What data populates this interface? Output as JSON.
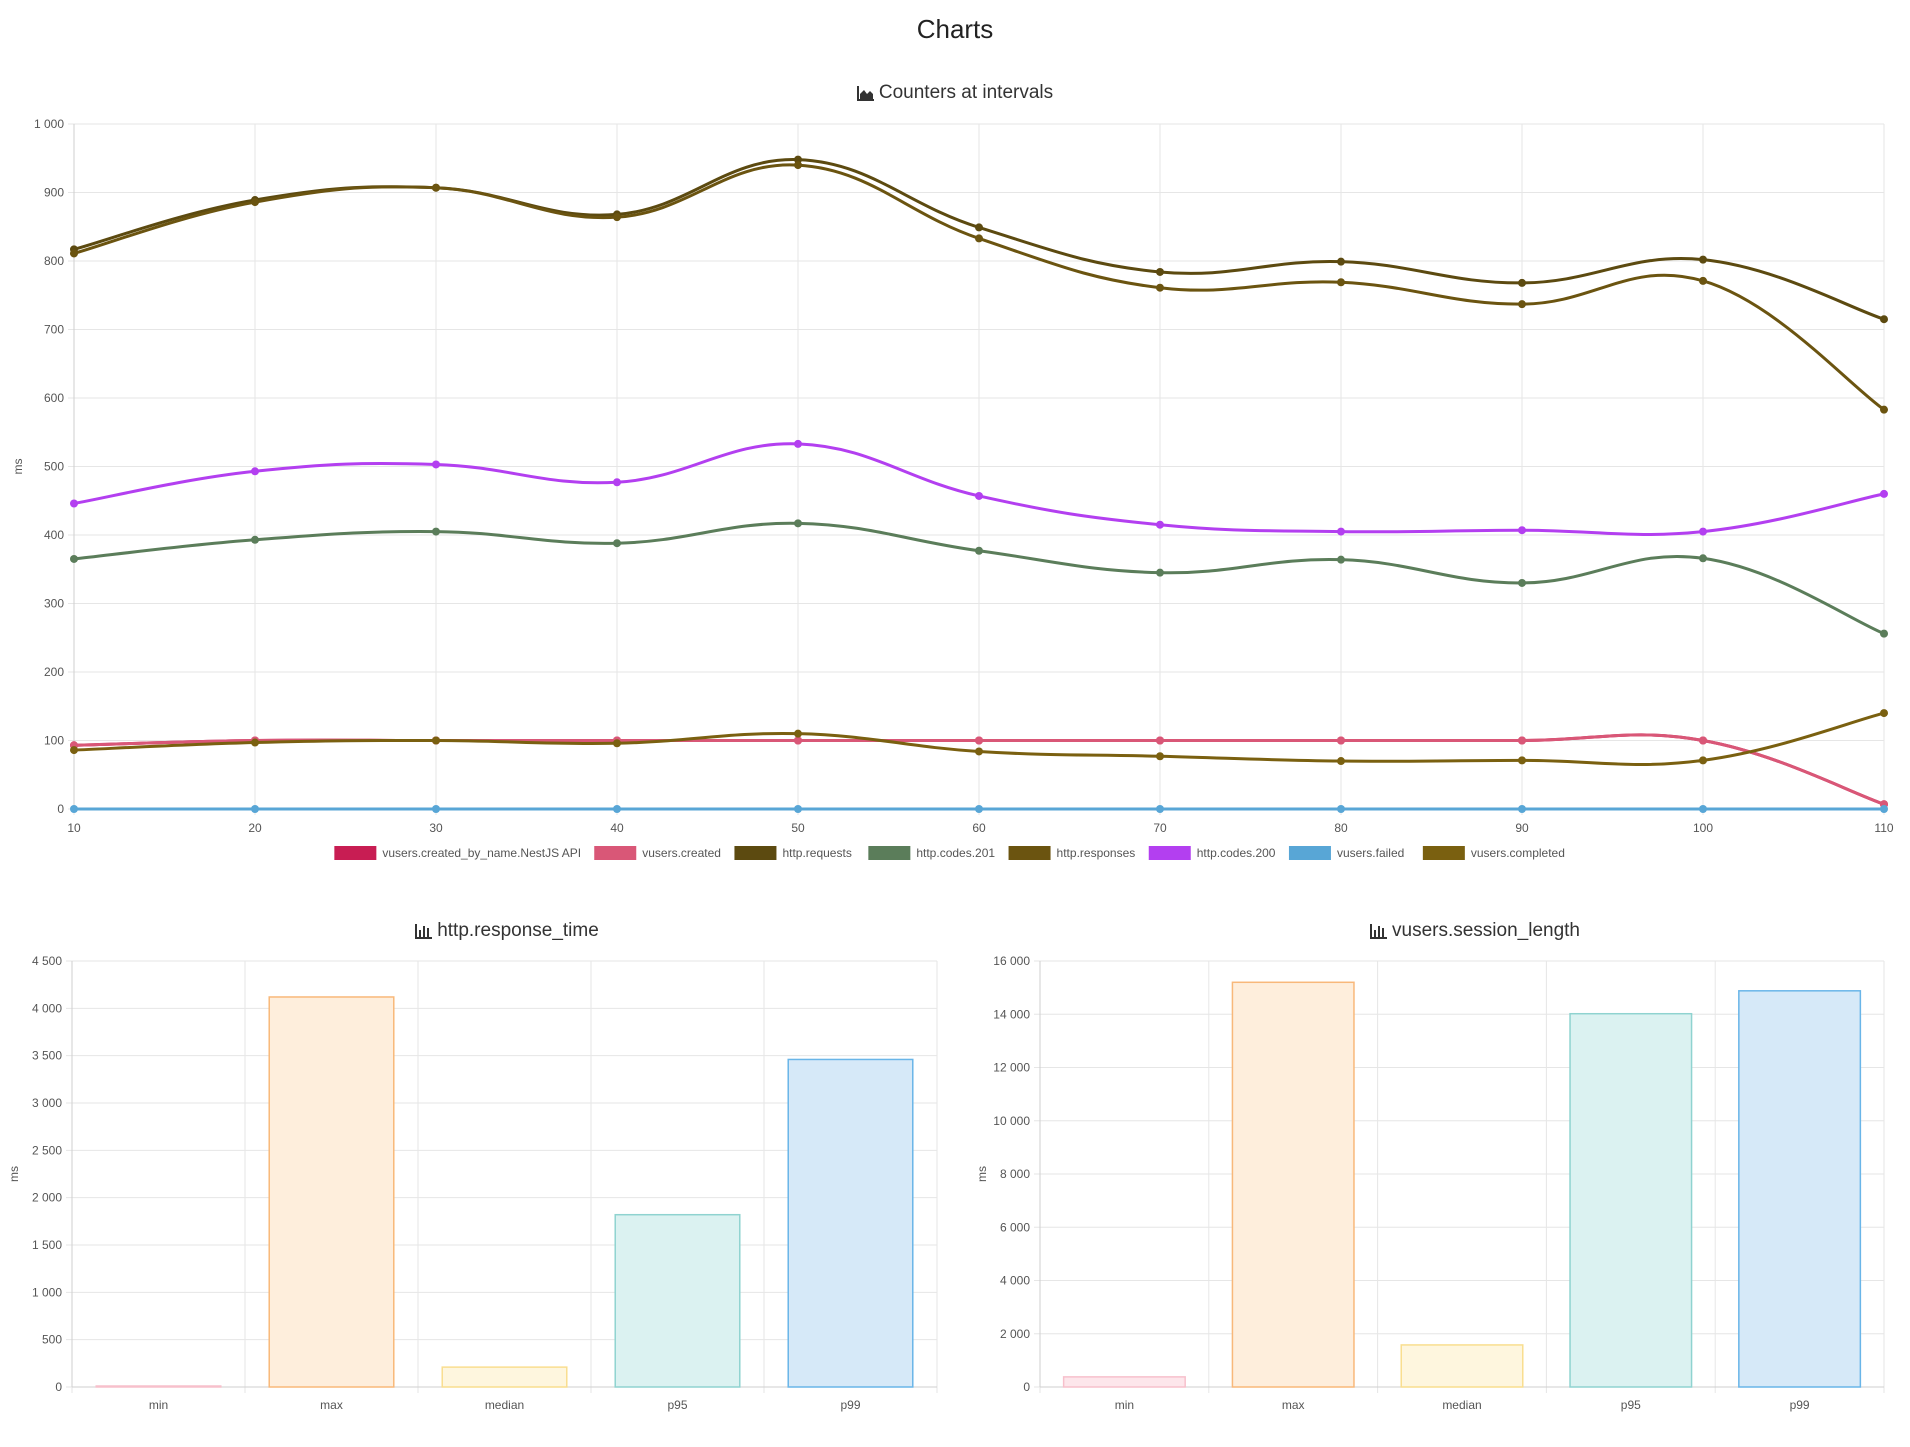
{
  "page": {
    "title": "Charts"
  },
  "chart_data": [
    {
      "id": "counters",
      "type": "line",
      "title": "Counters at intervals",
      "title_icon": "area-chart-icon",
      "xlabel": "",
      "ylabel": "ms",
      "x": [
        10,
        20,
        30,
        40,
        50,
        60,
        70,
        80,
        90,
        100,
        110
      ],
      "xlim": [
        10,
        110
      ],
      "ylim": [
        0,
        1000
      ],
      "yticks": [
        0,
        100,
        200,
        300,
        400,
        500,
        600,
        700,
        800,
        900,
        1000
      ],
      "ytick_labels": [
        "0",
        "100",
        "200",
        "300",
        "400",
        "500",
        "600",
        "700",
        "800",
        "900",
        "1 000"
      ],
      "grid": true,
      "legend_position": "bottom",
      "series": [
        {
          "name": "vusers.created_by_name.NestJS API",
          "color": "#c81d53",
          "values": [
            93,
            100,
            100,
            100,
            100,
            100,
            100,
            100,
            100,
            100,
            7
          ]
        },
        {
          "name": "vusers.created",
          "color": "#d95777",
          "values": [
            93,
            100,
            100,
            100,
            100,
            100,
            100,
            100,
            100,
            100,
            7
          ]
        },
        {
          "name": "http.requests",
          "color": "#5c4a10",
          "values": [
            817,
            889,
            907,
            868,
            948,
            849,
            784,
            799,
            768,
            802,
            715
          ]
        },
        {
          "name": "http.codes.201",
          "color": "#5b7d5a",
          "values": [
            365,
            393,
            405,
            388,
            417,
            377,
            345,
            364,
            330,
            366,
            256
          ]
        },
        {
          "name": "http.responses",
          "color": "#6b5410",
          "values": [
            811,
            886,
            907,
            864,
            940,
            833,
            761,
            769,
            737,
            771,
            583
          ]
        },
        {
          "name": "http.codes.200",
          "color": "#b33ff0",
          "values": [
            446,
            493,
            503,
            477,
            533,
            457,
            415,
            405,
            407,
            405,
            460
          ]
        },
        {
          "name": "vusers.failed",
          "color": "#58a6d6",
          "values": [
            0,
            0,
            0,
            0,
            0,
            0,
            0,
            0,
            0,
            0,
            0
          ]
        },
        {
          "name": "vusers.completed",
          "color": "#7a6010",
          "values": [
            86,
            97,
            100,
            96,
            110,
            84,
            77,
            70,
            71,
            71,
            140
          ]
        }
      ]
    },
    {
      "id": "response_time",
      "type": "bar",
      "title": "http.response_time",
      "title_icon": "bar-chart-icon",
      "ylabel": "ms",
      "categories": [
        "min",
        "max",
        "median",
        "p95",
        "p99"
      ],
      "values": [
        5,
        4120,
        210,
        1820,
        3460
      ],
      "ylim": [
        0,
        4500
      ],
      "yticks": [
        0,
        500,
        1000,
        1500,
        2000,
        2500,
        3000,
        3500,
        4000,
        4500
      ],
      "ytick_labels": [
        "0",
        "500",
        "1 000",
        "1 500",
        "2 000",
        "2 500",
        "3 000",
        "3 500",
        "4 000",
        "4 500"
      ],
      "colors": [
        "#f7c0cc",
        "#f8b87a",
        "#f9de8f",
        "#8fd3d0",
        "#69b5e8"
      ],
      "fills": [
        "#fde6eb",
        "#feeedc",
        "#fef6de",
        "#dbf2f1",
        "#d6e9f8"
      ]
    },
    {
      "id": "session_length",
      "type": "bar",
      "title": "vusers.session_length",
      "title_icon": "bar-chart-icon",
      "ylabel": "ms",
      "categories": [
        "min",
        "max",
        "median",
        "p95",
        "p99"
      ],
      "values": [
        380,
        15200,
        1580,
        14020,
        14880
      ],
      "ylim": [
        0,
        16000
      ],
      "yticks": [
        0,
        2000,
        4000,
        6000,
        8000,
        10000,
        12000,
        14000,
        16000
      ],
      "ytick_labels": [
        "0",
        "2 000",
        "4 000",
        "6 000",
        "8 000",
        "10 000",
        "12 000",
        "14 000",
        "16 000"
      ],
      "colors": [
        "#f7c0cc",
        "#f8b87a",
        "#f9de8f",
        "#8fd3d0",
        "#69b5e8"
      ],
      "fills": [
        "#fde6eb",
        "#feeedc",
        "#fef6de",
        "#dbf2f1",
        "#d6e9f8"
      ]
    }
  ]
}
